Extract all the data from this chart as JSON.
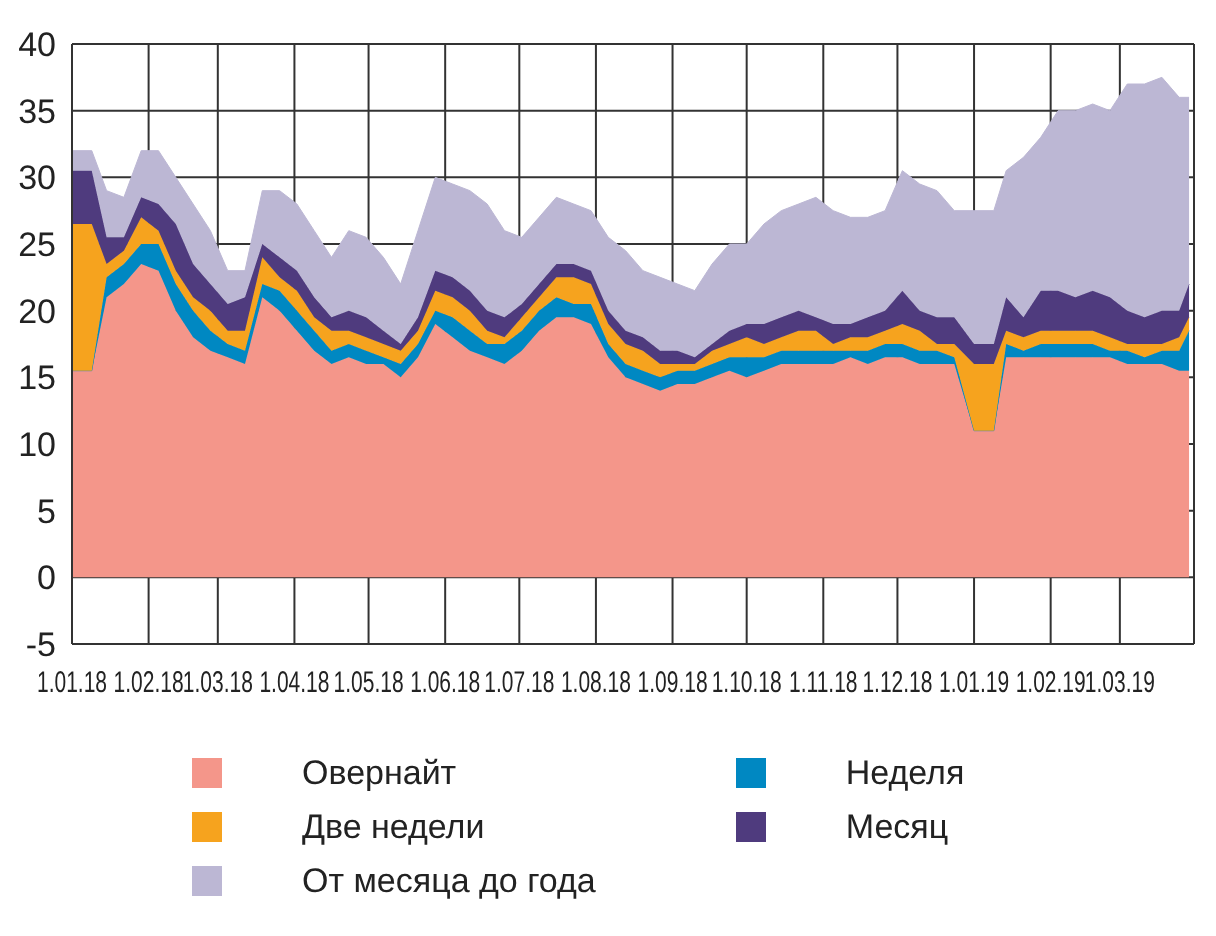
{
  "chart_data": {
    "type": "area",
    "stacked": true,
    "grid": true,
    "legend": "bottom",
    "x": [
      "2018-01-01",
      "2018-01-09",
      "2018-01-15",
      "2018-01-22",
      "2018-01-29",
      "2018-02-05",
      "2018-02-12",
      "2018-02-19",
      "2018-02-26",
      "2018-03-05",
      "2018-03-12",
      "2018-03-19",
      "2018-03-26",
      "2018-04-02",
      "2018-04-09",
      "2018-04-16",
      "2018-04-23",
      "2018-04-30",
      "2018-05-07",
      "2018-05-14",
      "2018-05-21",
      "2018-05-28",
      "2018-06-04",
      "2018-06-11",
      "2018-06-18",
      "2018-06-25",
      "2018-07-02",
      "2018-07-09",
      "2018-07-16",
      "2018-07-23",
      "2018-07-30",
      "2018-08-06",
      "2018-08-13",
      "2018-08-20",
      "2018-08-27",
      "2018-09-03",
      "2018-09-10",
      "2018-09-17",
      "2018-09-24",
      "2018-10-01",
      "2018-10-08",
      "2018-10-15",
      "2018-10-22",
      "2018-10-29",
      "2018-11-05",
      "2018-11-12",
      "2018-11-19",
      "2018-11-26",
      "2018-12-03",
      "2018-12-10",
      "2018-12-17",
      "2018-12-24",
      "2019-01-01",
      "2019-01-09",
      "2019-01-14",
      "2019-01-21",
      "2019-01-28",
      "2019-02-04",
      "2019-02-11",
      "2019-02-18",
      "2019-02-25",
      "2019-03-04",
      "2019-03-11",
      "2019-03-18",
      "2019-03-25",
      "2019-03-29"
    ],
    "series": [
      {
        "name": "Овернайт",
        "color": "#f4968a",
        "values": [
          15.5,
          15.5,
          21,
          22,
          23.5,
          23,
          20,
          18,
          17,
          16.5,
          16,
          21,
          20,
          18.5,
          17,
          16,
          16.5,
          16,
          16,
          15,
          16.5,
          19,
          18,
          17,
          16.5,
          16,
          17,
          18.5,
          19.5,
          19.5,
          19,
          16.5,
          15,
          14.5,
          14,
          14.5,
          14.5,
          15,
          15.5,
          15,
          15.5,
          16,
          16,
          16,
          16,
          16.5,
          16,
          16.5,
          16.5,
          16,
          16,
          16,
          11,
          11,
          16.5,
          16.5,
          16.5,
          16.5,
          16.5,
          16.5,
          16.5,
          16,
          16,
          16,
          15.5,
          15.5
        ]
      },
      {
        "name": "Неделя",
        "color": "#0088c2",
        "values": [
          0,
          0,
          1.5,
          1.5,
          1.5,
          2,
          2,
          2,
          1.5,
          1,
          1,
          1,
          1.5,
          1.5,
          1.5,
          1,
          1,
          1,
          0.5,
          1,
          1,
          1,
          1.5,
          1.5,
          1,
          1.5,
          1.5,
          1.5,
          1.5,
          1,
          1.5,
          1,
          1,
          1,
          1,
          1,
          1,
          1,
          1,
          1.5,
          1,
          1,
          1,
          1,
          1,
          0.5,
          1,
          1,
          1,
          1,
          1,
          0.5,
          0,
          0,
          1,
          0.5,
          1,
          1,
          1,
          1,
          0.5,
          1,
          0.5,
          1,
          1.5,
          3
        ]
      },
      {
        "name": "Две недели",
        "color": "#f6a31e",
        "values": [
          11,
          11,
          1,
          1,
          2,
          1,
          1,
          1,
          1.5,
          1,
          1.5,
          2,
          1,
          1.5,
          1,
          1.5,
          1,
          1,
          1,
          1,
          1,
          1.5,
          1.5,
          1.5,
          1,
          0.5,
          1,
          1,
          1.5,
          2,
          1.5,
          1.5,
          1.5,
          1.5,
          1,
          0.5,
          0.5,
          1,
          1,
          1.5,
          1,
          1,
          1.5,
          1.5,
          0.5,
          1,
          1,
          1,
          1.5,
          1.5,
          0.5,
          1,
          5,
          5,
          1,
          1,
          1,
          1,
          1,
          1,
          1,
          0.5,
          1,
          0.5,
          1,
          1
        ]
      },
      {
        "name": "Месяц",
        "color": "#4f3b7e",
        "values": [
          4,
          4,
          2,
          1,
          1.5,
          2,
          3.5,
          2.5,
          2,
          2,
          2.5,
          1,
          1.5,
          1.5,
          1.5,
          1,
          1.5,
          1.5,
          1,
          0.5,
          1,
          1.5,
          1.5,
          1.5,
          1.5,
          1.5,
          1,
          1,
          1,
          1,
          1,
          1,
          1,
          1,
          1,
          1,
          0.5,
          0.5,
          1,
          1,
          1.5,
          1.5,
          1.5,
          1,
          1.5,
          1,
          1.5,
          1.5,
          2.5,
          1.5,
          2,
          2,
          1.5,
          1.5,
          2.5,
          1.5,
          3,
          3,
          2.5,
          3,
          3,
          2.5,
          2,
          2.5,
          2,
          2.5
        ]
      },
      {
        "name": "От месяца до года",
        "color": "#bcb7d4",
        "values": [
          1.5,
          1.5,
          3.5,
          3,
          3.5,
          4,
          3.5,
          4.5,
          4,
          2.5,
          2,
          4,
          5,
          5,
          5,
          4.5,
          6,
          6,
          5.5,
          4.5,
          6.5,
          7,
          7,
          7.5,
          8,
          6.5,
          5,
          5,
          5,
          4.5,
          4.5,
          5.5,
          6,
          5,
          5.5,
          5,
          5,
          6,
          6.5,
          6,
          7.5,
          8,
          8,
          9,
          8.5,
          8,
          7.5,
          7.5,
          9,
          9.5,
          9.5,
          8,
          10,
          10,
          9.5,
          12,
          11.5,
          13.5,
          14,
          14,
          14,
          17,
          17.5,
          17.5,
          16,
          14
        ]
      }
    ],
    "xlim": [
      "2018-01-01",
      "2019-03-31"
    ],
    "xticks": [
      {
        "value": "2018-01-01",
        "label": "1.01.18"
      },
      {
        "value": "2018-02-01",
        "label": "1.02.18"
      },
      {
        "value": "2018-03-01",
        "label": "1.03.18"
      },
      {
        "value": "2018-04-01",
        "label": "1.04.18"
      },
      {
        "value": "2018-05-01",
        "label": "1.05.18"
      },
      {
        "value": "2018-06-01",
        "label": "1.06.18"
      },
      {
        "value": "2018-07-01",
        "label": "1.07.18"
      },
      {
        "value": "2018-08-01",
        "label": "1.08.18"
      },
      {
        "value": "2018-09-01",
        "label": "1.09.18"
      },
      {
        "value": "2018-10-01",
        "label": "1.10.18"
      },
      {
        "value": "2018-11-01",
        "label": "1.11.18"
      },
      {
        "value": "2018-12-01",
        "label": "1.12.18"
      },
      {
        "value": "2019-01-01",
        "label": "1.01.19"
      },
      {
        "value": "2019-02-01",
        "label": "1.02.19"
      },
      {
        "value": "2019-03-01",
        "label": "1.03.19"
      }
    ],
    "ylim": [
      -5,
      40
    ],
    "yticks": [
      -5,
      0,
      5,
      10,
      15,
      20,
      25,
      30,
      35,
      40
    ]
  }
}
